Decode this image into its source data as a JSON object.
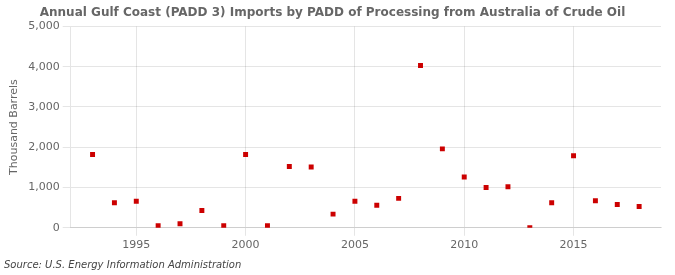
{
  "chart_data": {
    "type": "scatter",
    "title": "Annual Gulf Coast (PADD 3) Imports by PADD of Processing from Australia of Crude Oil",
    "ylabel": "Thousand Barrels",
    "annotations": [
      "Source: U.S. Energy Information Administration"
    ],
    "x": [
      1993,
      1994,
      1995,
      1996,
      1997,
      1998,
      1999,
      2000,
      2001,
      2002,
      2003,
      2004,
      2005,
      2006,
      2007,
      2008,
      2009,
      2010,
      2011,
      2012,
      2013,
      2014,
      2015,
      2016,
      2017,
      2018
    ],
    "values": [
      1820,
      620,
      660,
      50,
      100,
      430,
      50,
      1820,
      50,
      1520,
      1510,
      340,
      660,
      560,
      730,
      4030,
      1960,
      1260,
      1000,
      1020,
      0,
      620,
      1790,
      670,
      580,
      530
    ],
    "color": "#cc0000",
    "marker": "square",
    "xlim": [
      1992,
      2019
    ],
    "xticks": [
      1995,
      2000,
      2005,
      2010,
      2015
    ],
    "ylim": [
      0,
      5000
    ],
    "yticks": [
      0,
      {
        "value": 1000,
        "label": "1,000"
      },
      {
        "value": 2000,
        "label": "2,000"
      },
      {
        "value": 3000,
        "label": "3,000"
      },
      {
        "value": 4000,
        "label": "4,000"
      },
      {
        "value": 5000,
        "label": "5,000"
      }
    ],
    "grid": true
  }
}
